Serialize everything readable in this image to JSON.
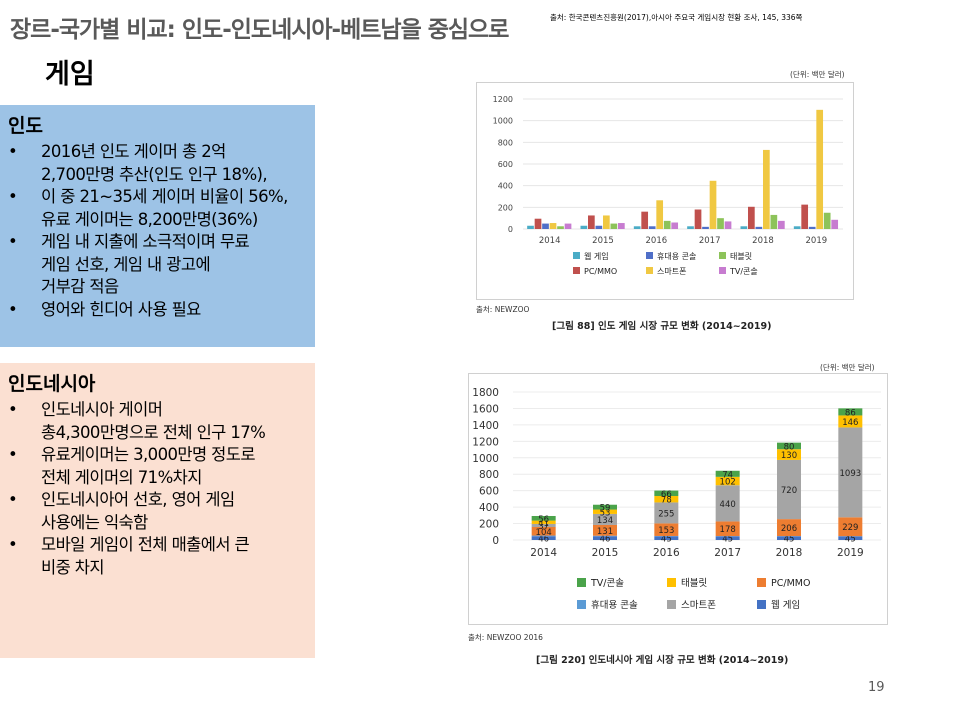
{
  "slide": {
    "title": "장르-국가별 비교: 인도-인도네시아-베트남을 중심으로",
    "source": "출처: 한국콘텐츠진흥원(2017),아시아 주요국 게임시장 현황 조사, 145, 336쪽",
    "subtitle": "게임",
    "page_number": "19"
  },
  "india": {
    "heading": "인도",
    "bullet_char": "•",
    "bullets": [
      [
        "2016년 인도 게이머 총 2억",
        "2,700만명 추산(인도 인구 18%),"
      ],
      [
        "이 중 21~35세 게이머 비율이 56%,",
        "유료 게이머는 8,200만명(36%)"
      ],
      [
        "게임 내 지출에 소극적이며 무료",
        "게임 선호, 게임 내 광고에",
        "거부감 적음"
      ],
      [
        "영어와 힌디어 사용 필요"
      ]
    ]
  },
  "indonesia": {
    "heading": "인도네시아",
    "bullet_char": "•",
    "bullets": [
      [
        "인도네시아 게이머",
        "총4,300만명으로 전체 인구 17%"
      ],
      [
        "유료게이머는 3,000만명 정도로",
        "전체 게이머의 71%차지"
      ],
      [
        "인도네시아어 선호, 영어 게임",
        "사용에는 익숙함"
      ],
      [
        "모바일 게임이 전체 매출에서 큰",
        "비중 차지"
      ]
    ]
  },
  "colors": {
    "web": "#4bacc6",
    "pc": "#c0504d",
    "mobile": "#4f6fc8",
    "smartphone": "#f0c842",
    "tablet": "#8dc35a",
    "tv": "#c77cd0",
    "c2_tv": "#4aa34a",
    "c2_tablet": "#ffc000",
    "c2_pc": "#ed7d31",
    "c2_mobile": "#5b9bd5",
    "c2_smartphone": "#a5a5a5",
    "c2_web": "#4472c4"
  },
  "chart_data": [
    {
      "type": "bar",
      "title": "[그림 88] 인도 게임 시장 규모 변화 (2014~2019)",
      "unit_note": "(단위: 백만 달러)",
      "source_note": "출처: NEWZOO",
      "categories": [
        "2014",
        "2015",
        "2016",
        "2017",
        "2018",
        "2019"
      ],
      "ylim": [
        0,
        1200
      ],
      "yticks": [
        0,
        200,
        400,
        600,
        800,
        1000,
        1200
      ],
      "legend_position": "bottom",
      "series": [
        {
          "name": "웹 게임",
          "color_key": "web",
          "values": [
            30,
            30,
            25,
            25,
            25,
            25
          ]
        },
        {
          "name": "PC/MMO",
          "color_key": "pc",
          "values": [
            95,
            125,
            160,
            180,
            205,
            225
          ]
        },
        {
          "name": "휴대용 콘솔",
          "color_key": "mobile",
          "values": [
            50,
            30,
            25,
            20,
            20,
            20
          ]
        },
        {
          "name": "스마트폰",
          "color_key": "smartphone",
          "values": [
            55,
            125,
            265,
            445,
            730,
            1100
          ]
        },
        {
          "name": "태블릿",
          "color_key": "tablet",
          "values": [
            25,
            50,
            75,
            100,
            130,
            150
          ]
        },
        {
          "name": "TV/콘솔",
          "color_key": "tv",
          "values": [
            50,
            55,
            60,
            70,
            75,
            85
          ]
        }
      ]
    },
    {
      "type": "bar",
      "stacked": true,
      "title": "[그림 220] 인도네시아 게임 시장 규모 변화 (2014~2019)",
      "unit_note": "(단위: 백만 달러)",
      "source_note": "출처: NEWZOO 2016",
      "categories": [
        "2014",
        "2015",
        "2016",
        "2017",
        "2018",
        "2019"
      ],
      "ylim": [
        0,
        1800
      ],
      "yticks": [
        0,
        200,
        400,
        600,
        800,
        1000,
        1200,
        1400,
        1600,
        1800
      ],
      "legend_position": "bottom",
      "stack_order": [
        "웹 게임",
        "휴대용 콘솔",
        "PC/MMO",
        "스마트폰",
        "태블릿",
        "TV/콘솔"
      ],
      "series": [
        {
          "name": "웹 게임",
          "color_key": "c2_web",
          "values": [
            46,
            46,
            45,
            45,
            45,
            45
          ]
        },
        {
          "name": "휴대용 콘솔",
          "color_key": "c2_mobile",
          "values": [
            8,
            6,
            4,
            3,
            3,
            2
          ]
        },
        {
          "name": "PC/MMO",
          "color_key": "c2_pc",
          "values": [
            104,
            131,
            153,
            178,
            206,
            229
          ]
        },
        {
          "name": "스마트폰",
          "color_key": "c2_smartphone",
          "values": [
            37,
            134,
            255,
            440,
            720,
            1093
          ]
        },
        {
          "name": "태블릿",
          "color_key": "c2_tablet",
          "values": [
            41,
            53,
            78,
            102,
            130,
            146
          ]
        },
        {
          "name": "TV/콘솔",
          "color_key": "c2_tv",
          "values": [
            56,
            59,
            66,
            74,
            80,
            86
          ]
        }
      ],
      "label_values": {
        "웹 게임": [
          "46",
          "46",
          "45",
          "45",
          "45",
          "45"
        ],
        "PC/MMO": [
          "104",
          "131",
          "153",
          "178",
          "206",
          "229"
        ],
        "스마트폰": [
          "37",
          "134",
          "255",
          "440",
          "720",
          "1093"
        ],
        "태블릿": [
          "41",
          "53",
          "78",
          "102",
          "130",
          "146"
        ],
        "TV/콘솔": [
          "56",
          "59",
          "66",
          "74",
          "80",
          "86"
        ]
      },
      "legend_layout": [
        [
          "TV/콘솔",
          "태블릿",
          "PC/MMO"
        ],
        [
          "휴대용 콘솔",
          "스마트폰",
          "웹 게임"
        ]
      ]
    }
  ]
}
